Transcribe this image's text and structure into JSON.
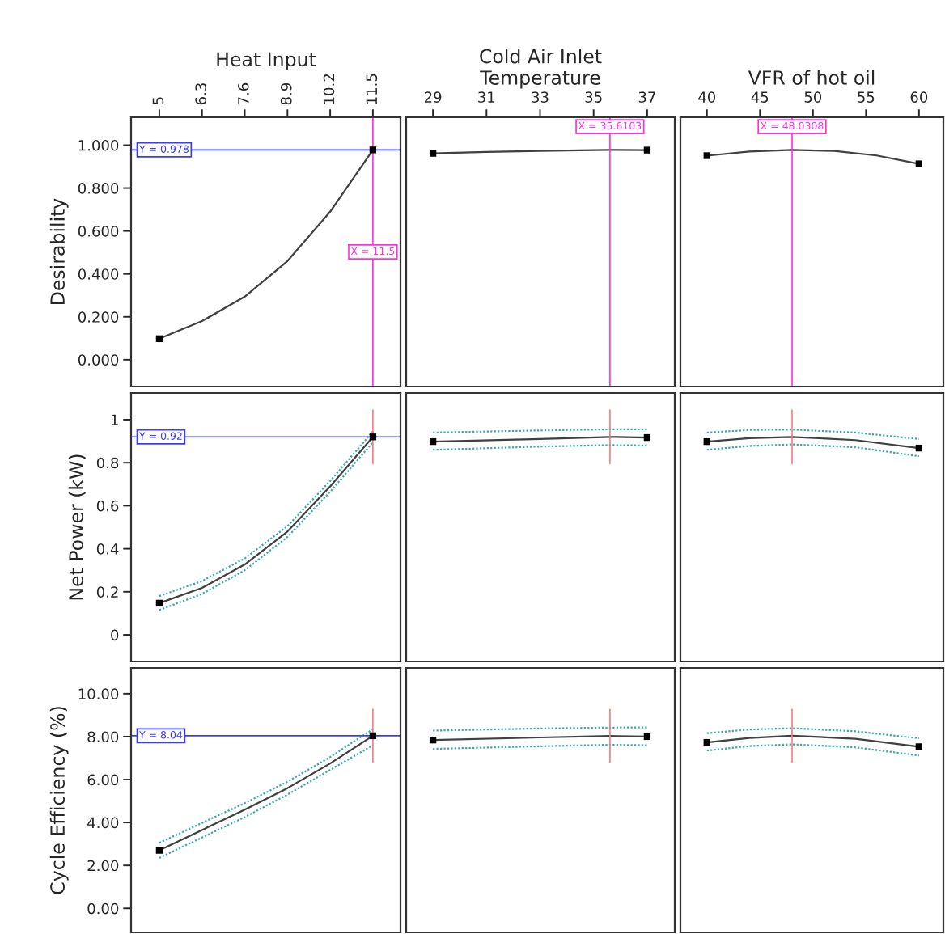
{
  "chart_data": [
    {
      "type": "line",
      "xlabel": "Heat Input",
      "ylabel": "Desirability",
      "xlim": [
        4.14,
        12.34
      ],
      "xticks": [
        5,
        6.3,
        7.6,
        8.9,
        10.2,
        11.5
      ],
      "ylim": [
        -0.125,
        1.13
      ],
      "yticks": [
        {
          "value": 0,
          "label": "0.000"
        },
        {
          "value": 0.2,
          "label": "0.200"
        },
        {
          "value": 0.4,
          "label": "0.400"
        },
        {
          "value": 0.6,
          "label": "0.600"
        },
        {
          "value": 0.8,
          "label": "0.800"
        },
        {
          "value": 1,
          "label": "1.000"
        }
      ],
      "series": [
        {
          "color": "#404040",
          "x": [
            5,
            6.3,
            7.6,
            8.9,
            10.2,
            11.5
          ],
          "values": [
            0.098,
            0.18,
            0.294,
            0.46,
            0.69,
            0.978
          ]
        },
        {
          "type": "scatter",
          "marker": "square",
          "color": "#000000",
          "x": [
            5,
            11.5
          ],
          "values": [
            0.098,
            0.978
          ]
        }
      ],
      "ref_lines": [
        {
          "axis": "y",
          "value": 0.978,
          "label": "Y = 0.978",
          "color": "#3b3bff"
        },
        {
          "axis": "x",
          "value": 11.5,
          "label": "X = 11.5",
          "color": "#ff33dd"
        }
      ]
    },
    {
      "type": "line",
      "xlabel": "Cold Air Inlet\nTemperature",
      "xlim": [
        28.0,
        38.03
      ],
      "xticks": [
        29,
        31,
        33,
        35,
        37
      ],
      "ylim": [
        -0.125,
        1.13
      ],
      "tick_labels": "x",
      "series": [
        {
          "color": "#404040",
          "x": [
            29,
            31,
            33,
            35,
            35.6103,
            37
          ],
          "values": [
            0.962,
            0.968,
            0.973,
            0.977,
            0.978,
            0.977
          ]
        },
        {
          "type": "scatter",
          "marker": "square",
          "color": "#000000",
          "x": [
            29,
            37
          ],
          "values": [
            0.962,
            0.977
          ]
        }
      ],
      "ref_lines": [
        {
          "axis": "x",
          "value": 35.6103,
          "label": "X = 35.6103",
          "color": "#ff33dd"
        }
      ]
    },
    {
      "type": "line",
      "xlabel": "VFR of hot oil",
      "xlim": [
        37.5,
        62.3
      ],
      "xticks": [
        40,
        45,
        50,
        55,
        60
      ],
      "ylim": [
        -0.125,
        1.13
      ],
      "tick_labels": "x",
      "series": [
        {
          "color": "#404040",
          "x": [
            40,
            44,
            48.0308,
            52,
            56,
            60
          ],
          "values": [
            0.951,
            0.97,
            0.978,
            0.973,
            0.952,
            0.913
          ]
        },
        {
          "type": "scatter",
          "marker": "square",
          "color": "#000000",
          "x": [
            40,
            60
          ],
          "values": [
            0.951,
            0.913
          ]
        }
      ],
      "ref_lines": [
        {
          "axis": "x",
          "value": 48.0308,
          "label": "X = 48.0308",
          "color": "#ff33dd"
        }
      ]
    },
    {
      "type": "line",
      "ylabel": "Net Power (kW)",
      "xlim": [
        4.14,
        12.34
      ],
      "ylim": [
        -0.124,
        1.124
      ],
      "yticks": [
        0,
        0.2,
        0.4,
        0.6,
        0.8,
        1
      ],
      "tick_labels": "y",
      "series": [
        {
          "color": "#404040",
          "x": [
            5,
            6.3,
            7.6,
            8.9,
            10.2,
            11.5
          ],
          "values": [
            0.147,
            0.218,
            0.327,
            0.48,
            0.69,
            0.92
          ]
        },
        {
          "line_style": "dotted",
          "color": "#3aa8a8",
          "x": [
            5,
            6.3,
            7.6,
            8.9,
            10.2,
            11.5
          ],
          "values": [
            0.18,
            0.25,
            0.355,
            0.505,
            0.715,
            0.945
          ]
        },
        {
          "line_style": "dotted",
          "color": "#3aa8a8",
          "x": [
            5,
            6.3,
            7.6,
            8.9,
            10.2,
            11.5
          ],
          "values": [
            0.115,
            0.19,
            0.3,
            0.455,
            0.665,
            0.895
          ]
        },
        {
          "type": "scatter",
          "marker": "square",
          "color": "#000000",
          "x": [
            5,
            11.5
          ],
          "values": [
            0.147,
            0.92
          ]
        }
      ],
      "ref_lines": [
        {
          "axis": "y",
          "value": 0.92,
          "label": "Y = 0.92",
          "color": "#3b3bff"
        },
        {
          "axis": "x",
          "value": 11.5,
          "color": "#f08080"
        }
      ]
    },
    {
      "type": "line",
      "xlim": [
        28.0,
        38.03
      ],
      "ylim": [
        -0.124,
        1.124
      ],
      "tick_labels": false,
      "series": [
        {
          "color": "#404040",
          "x": [
            29,
            33,
            35.6103,
            37
          ],
          "values": [
            0.898,
            0.91,
            0.92,
            0.917
          ]
        },
        {
          "line_style": "dotted",
          "color": "#3aa8a8",
          "x": [
            29,
            33,
            35.6103,
            37
          ],
          "values": [
            0.94,
            0.95,
            0.955,
            0.955
          ]
        },
        {
          "line_style": "dotted",
          "color": "#3aa8a8",
          "x": [
            29,
            33,
            35.6103,
            37
          ],
          "values": [
            0.86,
            0.875,
            0.882,
            0.88
          ]
        },
        {
          "type": "scatter",
          "marker": "square",
          "color": "#000000",
          "x": [
            29,
            37
          ],
          "values": [
            0.898,
            0.917
          ]
        }
      ],
      "ref_lines": [
        {
          "axis": "x",
          "value": 35.6103,
          "color": "#f08080"
        }
      ]
    },
    {
      "type": "line",
      "xlim": [
        37.5,
        62.3
      ],
      "ylim": [
        -0.124,
        1.124
      ],
      "tick_labels": false,
      "series": [
        {
          "color": "#404040",
          "x": [
            40,
            44,
            48.0308,
            54,
            60
          ],
          "values": [
            0.898,
            0.914,
            0.92,
            0.905,
            0.868
          ]
        },
        {
          "line_style": "dotted",
          "color": "#3aa8a8",
          "x": [
            40,
            44,
            48.0308,
            54,
            60
          ],
          "values": [
            0.94,
            0.952,
            0.954,
            0.94,
            0.91
          ]
        },
        {
          "line_style": "dotted",
          "color": "#3aa8a8",
          "x": [
            40,
            44,
            48.0308,
            54,
            60
          ],
          "values": [
            0.86,
            0.878,
            0.885,
            0.872,
            0.83
          ]
        },
        {
          "type": "scatter",
          "marker": "square",
          "color": "#000000",
          "x": [
            40,
            60
          ],
          "values": [
            0.898,
            0.868
          ]
        }
      ],
      "ref_lines": [
        {
          "axis": "x",
          "value": 48.0308,
          "color": "#f08080"
        }
      ]
    },
    {
      "type": "line",
      "ylabel": "Cycle Efficiency (%)",
      "xlim": [
        4.14,
        12.34
      ],
      "ylim": [
        -1.12,
        11.2
      ],
      "yticks": [
        {
          "value": 0,
          "label": "0.00"
        },
        {
          "value": 2,
          "label": "2.00"
        },
        {
          "value": 4,
          "label": "4.00"
        },
        {
          "value": 6,
          "label": "6.00"
        },
        {
          "value": 8,
          "label": "8.00"
        },
        {
          "value": 10,
          "label": "10.00"
        }
      ],
      "tick_labels": "y",
      "series": [
        {
          "color": "#404040",
          "x": [
            5,
            6.3,
            7.6,
            8.9,
            10.2,
            11.5
          ],
          "values": [
            2.7,
            3.65,
            4.6,
            5.6,
            6.75,
            8.04
          ]
        },
        {
          "line_style": "dotted",
          "color": "#3aa8a8",
          "x": [
            5,
            6.3,
            7.6,
            8.9,
            10.2,
            11.5
          ],
          "values": [
            3.05,
            3.98,
            4.9,
            5.9,
            7.05,
            8.35
          ]
        },
        {
          "line_style": "dotted",
          "color": "#3aa8a8",
          "x": [
            5,
            6.3,
            7.6,
            8.9,
            10.2,
            11.5
          ],
          "values": [
            2.35,
            3.3,
            4.25,
            5.3,
            6.45,
            7.6
          ]
        },
        {
          "type": "scatter",
          "marker": "square",
          "color": "#000000",
          "x": [
            5,
            11.5
          ],
          "values": [
            2.7,
            8.04
          ]
        }
      ],
      "ref_lines": [
        {
          "axis": "y",
          "value": 8.04,
          "label": "Y = 8.04",
          "color": "#3b3bff"
        },
        {
          "axis": "x",
          "value": 11.5,
          "color": "#f08080"
        }
      ]
    },
    {
      "type": "line",
      "xlim": [
        28.0,
        38.03
      ],
      "ylim": [
        -1.12,
        11.2
      ],
      "tick_labels": false,
      "series": [
        {
          "color": "#404040",
          "x": [
            29,
            33,
            35.6103,
            37
          ],
          "values": [
            7.84,
            7.96,
            8.03,
            8.0
          ]
        },
        {
          "line_style": "dotted",
          "color": "#3aa8a8",
          "x": [
            29,
            33,
            35.6103,
            37
          ],
          "values": [
            8.28,
            8.38,
            8.42,
            8.43
          ]
        },
        {
          "line_style": "dotted",
          "color": "#3aa8a8",
          "x": [
            29,
            33,
            35.6103,
            37
          ],
          "values": [
            7.43,
            7.55,
            7.62,
            7.6
          ]
        },
        {
          "type": "scatter",
          "marker": "square",
          "color": "#000000",
          "x": [
            29,
            37
          ],
          "values": [
            7.84,
            8.0
          ]
        }
      ],
      "ref_lines": [
        {
          "axis": "x",
          "value": 35.6103,
          "color": "#f08080"
        }
      ]
    },
    {
      "type": "line",
      "xlim": [
        37.5,
        62.3
      ],
      "ylim": [
        -1.12,
        11.2
      ],
      "tick_labels": false,
      "series": [
        {
          "color": "#404040",
          "x": [
            40,
            44,
            48.0308,
            54,
            60
          ],
          "values": [
            7.73,
            7.94,
            8.04,
            7.9,
            7.53
          ]
        },
        {
          "line_style": "dotted",
          "color": "#3aa8a8",
          "x": [
            40,
            44,
            48.0308,
            54,
            60
          ],
          "values": [
            8.16,
            8.33,
            8.39,
            8.25,
            7.92
          ]
        },
        {
          "line_style": "dotted",
          "color": "#3aa8a8",
          "x": [
            40,
            44,
            48.0308,
            54,
            60
          ],
          "values": [
            7.35,
            7.56,
            7.64,
            7.5,
            7.12
          ]
        },
        {
          "type": "scatter",
          "marker": "square",
          "color": "#000000",
          "x": [
            40,
            60
          ],
          "values": [
            7.73,
            7.53
          ]
        }
      ],
      "ref_lines": [
        {
          "axis": "x",
          "value": 48.0308,
          "color": "#f08080"
        }
      ]
    }
  ]
}
